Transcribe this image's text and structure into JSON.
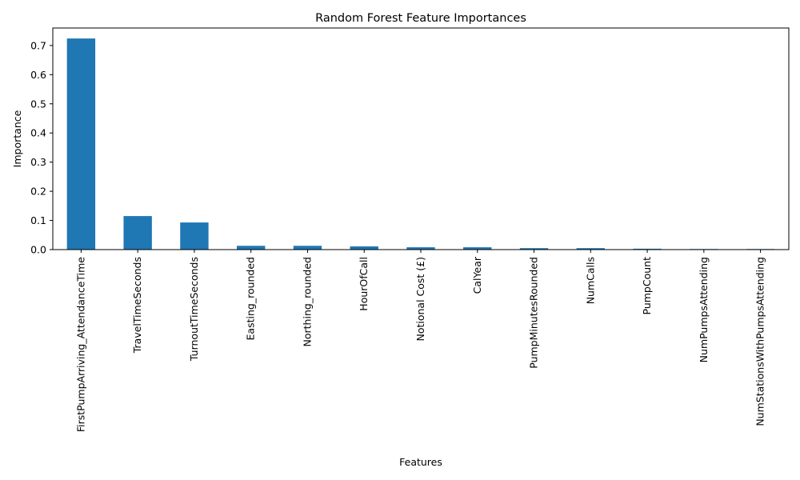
{
  "chart_data": {
    "type": "bar",
    "title": "Random Forest Feature Importances",
    "xlabel": "Features",
    "ylabel": "Importance",
    "categories": [
      "FirstPumpArriving_AttendanceTime",
      "TravelTimeSeconds",
      "TurnoutTimeSeconds",
      "Easting_rounded",
      "Northing_rounded",
      "HourOfCall",
      "Notional Cost (£)",
      "CalYear",
      "PumpMinutesRounded",
      "NumCalls",
      "PumpCount",
      "NumPumpsAttending",
      "NumStationsWithPumpsAttending"
    ],
    "values": [
      0.724,
      0.115,
      0.093,
      0.013,
      0.013,
      0.011,
      0.008,
      0.008,
      0.005,
      0.005,
      0.003,
      0.002,
      0.002
    ],
    "ylim": [
      0,
      0.76
    ],
    "yticks": [
      0.0,
      0.1,
      0.2,
      0.3,
      0.4,
      0.5,
      0.6,
      0.7
    ],
    "ytick_labels": [
      "0.0",
      "0.1",
      "0.2",
      "0.3",
      "0.4",
      "0.5",
      "0.6",
      "0.7"
    ],
    "grid": false,
    "bar_color": "#1f77b4"
  }
}
